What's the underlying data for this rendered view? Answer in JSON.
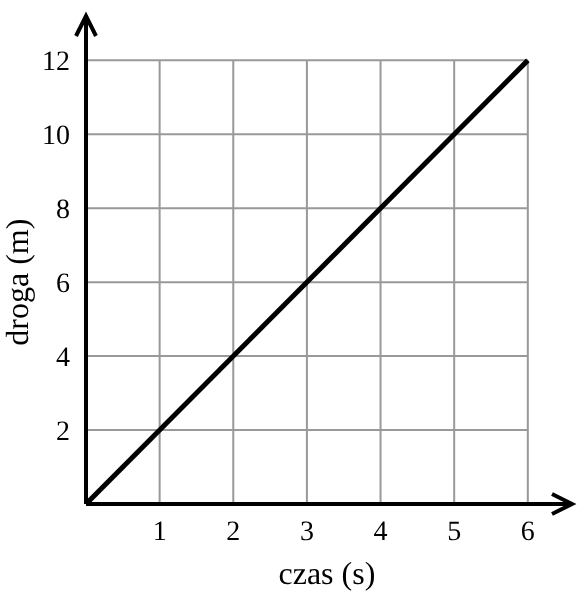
{
  "chart_data": {
    "type": "line",
    "xlabel": "czas (s)",
    "ylabel": "droga (m)",
    "x": [
      0,
      6
    ],
    "series": [
      {
        "color": "#000000",
        "values": [
          0,
          12
        ]
      }
    ],
    "xlim": [
      0,
      6.6
    ],
    "ylim": [
      0,
      13.2
    ],
    "xticks": [
      1,
      2,
      3,
      4,
      5,
      6
    ],
    "yticks": [
      2,
      4,
      6,
      8,
      10,
      12
    ],
    "grid": true,
    "line_style": "solid",
    "marker": "none"
  }
}
